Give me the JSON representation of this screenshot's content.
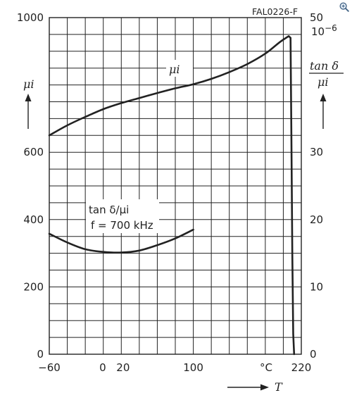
{
  "figure_code": "FAL0226-F",
  "chart_data": {
    "type": "line",
    "x": {
      "ticks": [
        {
          "value": -60,
          "label": "−60"
        },
        {
          "value": 0,
          "label": "0"
        },
        {
          "value": 20,
          "label": "20"
        },
        {
          "value": 100,
          "label": "100"
        },
        {
          "value": 220,
          "label": "220"
        }
      ],
      "unit": "°C",
      "label": "T",
      "range": [
        -60,
        220
      ],
      "grid_step": 20
    },
    "y_left": {
      "ticks": [
        0,
        200,
        400,
        600,
        1000
      ],
      "range": [
        0,
        1000
      ],
      "grid_step": 50,
      "label": "μi"
    },
    "y_right": {
      "ticks": [
        0,
        10,
        20,
        30,
        50
      ],
      "range": [
        0,
        50
      ],
      "label_top": "tan δ",
      "label_bottom": "μi",
      "multiplier": "10",
      "exponent": "−6"
    },
    "series": [
      {
        "name": "μi",
        "axis": "left",
        "points": [
          [
            -60,
            650
          ],
          [
            -40,
            680
          ],
          [
            -20,
            705
          ],
          [
            0,
            728
          ],
          [
            20,
            746
          ],
          [
            40,
            761
          ],
          [
            60,
            776
          ],
          [
            80,
            790
          ],
          [
            100,
            802
          ],
          [
            120,
            818
          ],
          [
            140,
            838
          ],
          [
            160,
            862
          ],
          [
            180,
            893
          ],
          [
            196,
            927
          ],
          [
            206,
            945
          ],
          [
            208,
            940
          ],
          [
            209,
            650
          ],
          [
            210,
            300
          ],
          [
            211,
            60
          ],
          [
            212,
            0
          ]
        ]
      },
      {
        "name": "tan δ/μi",
        "axis": "right",
        "points": [
          [
            -60,
            17.9
          ],
          [
            -40,
            16.6
          ],
          [
            -20,
            15.6
          ],
          [
            0,
            15.2
          ],
          [
            20,
            15.1
          ],
          [
            40,
            15.4
          ],
          [
            60,
            16.2
          ],
          [
            80,
            17.2
          ],
          [
            100,
            18.5
          ]
        ]
      }
    ],
    "annotations": {
      "mu_curve_label": "μi",
      "tan_line1": "tan δ/μi",
      "tan_line2": "f = 700 kHz"
    }
  },
  "icons": {
    "zoom": "zoom-in-icon"
  }
}
